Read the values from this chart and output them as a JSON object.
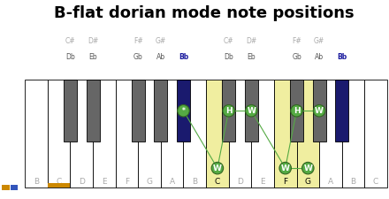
{
  "title": "B-flat dorian mode note positions",
  "title_fontsize": 13,
  "white_keys": [
    "B",
    "C",
    "D",
    "E",
    "F",
    "G",
    "A",
    "B",
    "C",
    "D",
    "E",
    "F",
    "G",
    "A",
    "B",
    "C"
  ],
  "white_highlight": [
    null,
    "orange",
    null,
    null,
    null,
    null,
    null,
    null,
    "yellow",
    null,
    null,
    "yellow",
    "yellow",
    null,
    null,
    null
  ],
  "black_key_positions": [
    1,
    2,
    4,
    5,
    6,
    8,
    9,
    11,
    12,
    13
  ],
  "black_sharp_labels": [
    "C#",
    "D#",
    "F#",
    "G#",
    "",
    "C#",
    "D#",
    "F#",
    "G#",
    ""
  ],
  "black_flat_labels": [
    "Db",
    "Eb",
    "Gb",
    "Ab",
    "Bb",
    "Db",
    "Eb",
    "Gb",
    "Ab",
    "Bb"
  ],
  "blue_black_keys": [
    4,
    9
  ],
  "bg_color": "#ffffff",
  "sidebar_bg": "#111111",
  "sidebar_text_color": "#ffffff",
  "gray_black": "#666666",
  "navy_black": "#1a1a6e",
  "yellow_white": "#f0eea0",
  "orange_bar": "#cc8800",
  "blue_dot": "#3355bb",
  "green_fill": "#55aa44",
  "green_edge": "#336622",
  "label_gray": "#aaaaaa",
  "label_navy": "#1a1a9e",
  "circles": [
    {
      "xi": 4,
      "is_black": true,
      "label": "*",
      "low": false
    },
    {
      "xi": 8,
      "is_black": false,
      "label": "W",
      "low": true
    },
    {
      "xi": 5,
      "is_black": true,
      "label": "H",
      "low": false
    },
    {
      "xi": 6,
      "is_black": true,
      "label": "W",
      "low": false
    },
    {
      "xi": 11,
      "is_black": false,
      "label": "W",
      "low": true
    },
    {
      "xi": 12,
      "is_black": false,
      "label": "W",
      "low": true
    },
    {
      "xi": 7,
      "is_black": true,
      "label": "H",
      "low": false
    },
    {
      "xi": 8,
      "is_black": true,
      "label": "W",
      "low": false
    }
  ],
  "lines": [
    [
      0,
      1
    ],
    [
      1,
      2
    ],
    [
      2,
      3
    ],
    [
      3,
      4
    ],
    [
      4,
      5
    ],
    [
      4,
      6
    ],
    [
      6,
      7
    ]
  ]
}
